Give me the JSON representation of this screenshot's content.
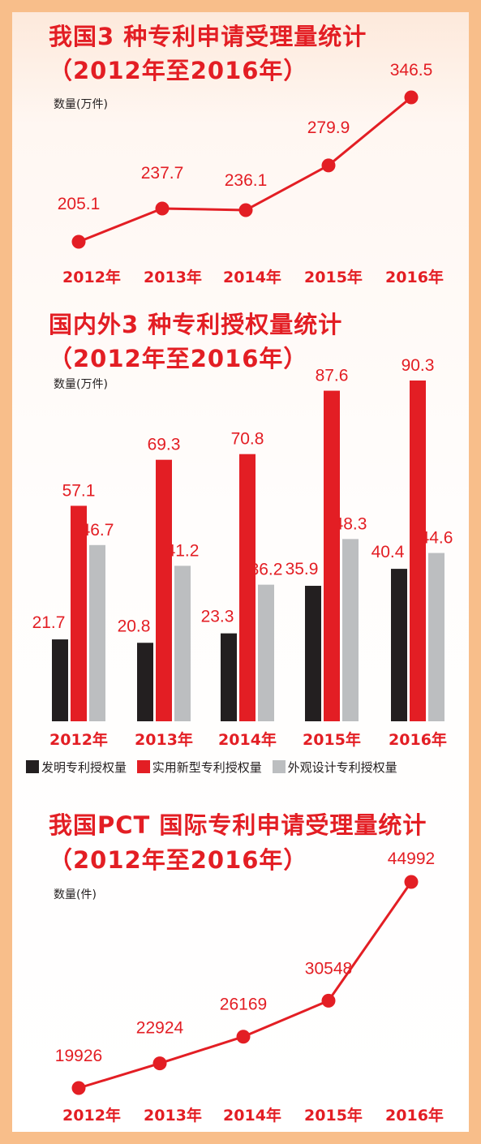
{
  "colors": {
    "red": "#E31E24",
    "black": "#231F20",
    "gray": "#BCBEC0",
    "border": "#F8BE8A"
  },
  "chart_data": [
    {
      "type": "line",
      "title": "我国3 种专利申请受理量统计",
      "subtitle": "（2012年至2016年）",
      "ylabel": "数量(万件)",
      "categories": [
        "2012年",
        "2013年",
        "2014年",
        "2015年",
        "2016年"
      ],
      "values": [
        205.1,
        237.7,
        236.1,
        279.9,
        346.5
      ],
      "value_labels": [
        "205.1",
        "237.7",
        "236.1",
        "279.9",
        "346.5"
      ]
    },
    {
      "type": "bar",
      "title": "国内外3 种专利授权量统计",
      "subtitle": "（2012年至2016年）",
      "ylabel": "数量(万件)",
      "categories": [
        "2012年",
        "2013年",
        "2014年",
        "2015年",
        "2016年"
      ],
      "series": [
        {
          "name": "发明专利授权量",
          "color": "#231F20",
          "values": [
            21.7,
            20.8,
            23.3,
            35.9,
            40.4
          ],
          "labels": [
            "21.7",
            "20.8",
            "23.3",
            "35.9",
            "40.4"
          ]
        },
        {
          "name": "实用新型专利授权量",
          "color": "#E31E24",
          "values": [
            57.1,
            69.3,
            70.8,
            87.6,
            90.3
          ],
          "labels": [
            "57.1",
            "69.3",
            "70.8",
            "87.6",
            "90.3"
          ]
        },
        {
          "name": "外观设计专利授权量",
          "color": "#BCBEC0",
          "values": [
            46.7,
            41.2,
            36.2,
            48.3,
            44.6
          ],
          "labels": [
            "46.7",
            "41.2",
            "36.2",
            "48.3",
            "44.6"
          ]
        }
      ],
      "legend": "bottom"
    },
    {
      "type": "line",
      "title": "我国PCT 国际专利申请受理量统计",
      "subtitle": "（2012年至2016年）",
      "ylabel": "数量(件)",
      "categories": [
        "2012年",
        "2013年",
        "2014年",
        "2015年",
        "2016年"
      ],
      "values": [
        19926,
        22924,
        26169,
        30548,
        44992
      ],
      "value_labels": [
        "19926",
        "22924",
        "26169",
        "30548",
        "44992"
      ]
    }
  ]
}
